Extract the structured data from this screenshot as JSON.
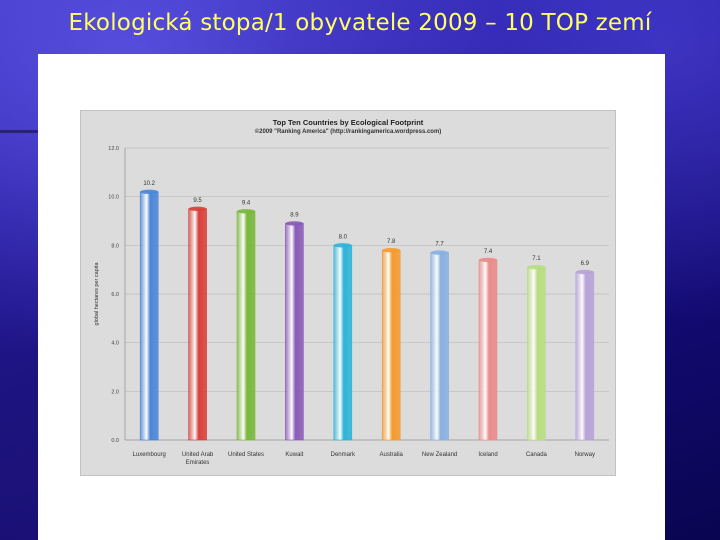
{
  "slide": {
    "title": "Ekologická stopa/1 obyvatele 2009 – 10 TOP zemí"
  },
  "chart_data": {
    "type": "bar",
    "title": "Top Ten Countries by Ecological Footprint",
    "subtitle": "©2009 \"Ranking America\" (http://rankingamerica.wordpress.com)",
    "xlabel": "",
    "ylabel": "global hectares per capita",
    "ylim": [
      0,
      12
    ],
    "yticks": [
      "0.0",
      "2.0",
      "4.0",
      "6.0",
      "8.0",
      "10.0",
      "12.0"
    ],
    "grid": true,
    "legend": "none",
    "categories": [
      "Luxembourg",
      "United Arab Emirates",
      "United States",
      "Kuwait",
      "Denmark",
      "Australia",
      "New Zealand",
      "Iceland",
      "Canada",
      "Norway"
    ],
    "category_labels": [
      [
        "Luxembourg"
      ],
      [
        "United Arab",
        "Emirates"
      ],
      [
        "United States"
      ],
      [
        "Kuwait"
      ],
      [
        "Denmark"
      ],
      [
        "Australia"
      ],
      [
        "New Zealand"
      ],
      [
        "Iceland"
      ],
      [
        "Canada"
      ],
      [
        "Norway"
      ]
    ],
    "values": [
      10.2,
      9.5,
      9.4,
      8.9,
      8.0,
      7.8,
      7.7,
      7.4,
      7.1,
      6.9
    ],
    "value_labels": [
      "10.2",
      "9.5",
      "9.4",
      "8.9",
      "8.0",
      "7.8",
      "7.7",
      "7.4",
      "7.1",
      "6.9"
    ],
    "colors": [
      "#4a86d8",
      "#d9403a",
      "#78b83a",
      "#8a5ab8",
      "#2cb4d8",
      "#f59a2e",
      "#8ab0e0",
      "#ec8a8a",
      "#b8de80",
      "#b8a2d8"
    ]
  }
}
